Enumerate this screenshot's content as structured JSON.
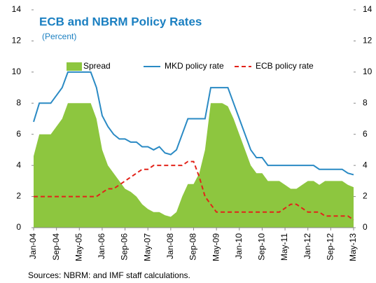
{
  "chart_data": {
    "type": "line",
    "title": "ECB and NBRM Policy Rates",
    "subtitle": "(Percent)",
    "source": "Sources: NBRM: and IMF staff calculations.",
    "categories": [
      "Jan-04",
      null,
      null,
      null,
      "Sep-04",
      null,
      null,
      null,
      "May-05",
      null,
      null,
      null,
      "Jan-06",
      null,
      null,
      null,
      "Sep-06",
      null,
      null,
      null,
      "May-07",
      null,
      null,
      null,
      "Jan-08",
      null,
      null,
      null,
      "Sep-08",
      null,
      null,
      null,
      "May-09",
      null,
      null,
      null,
      "Jan-10",
      null,
      null,
      null,
      "Sep-10",
      null,
      null,
      null,
      "May-11",
      null,
      null,
      null,
      "Jan-12",
      null,
      null,
      null,
      "Sep-12",
      null,
      null,
      null,
      "May-13"
    ],
    "series": [
      {
        "name": "Spread",
        "kind": "area",
        "color": "#8dc63f",
        "values": [
          4.6,
          6,
          6,
          6,
          6.5,
          7,
          8,
          8,
          8,
          8,
          8,
          7,
          5,
          4,
          3.5,
          3,
          2.5,
          2.3,
          2,
          1.5,
          1.2,
          1,
          1,
          0.8,
          0.7,
          1,
          2,
          2.8,
          2.8,
          3.5,
          5,
          8,
          8,
          8,
          7.8,
          7,
          6,
          5,
          4,
          3.5,
          3.5,
          3,
          3,
          3,
          2.75,
          2.5,
          2.5,
          2.75,
          3,
          3,
          2.75,
          3,
          3,
          3,
          3,
          2.75,
          2.6
        ]
      },
      {
        "name": "MKD policy rate",
        "kind": "line",
        "style": "solid",
        "color": "#2a8ac4",
        "values": [
          6.8,
          8,
          8,
          8,
          8.5,
          9,
          10,
          10,
          10,
          10,
          10,
          9,
          7.2,
          6.5,
          6,
          5.7,
          5.7,
          5.5,
          5.5,
          5.2,
          5.2,
          5,
          5.2,
          4.8,
          4.7,
          5,
          6,
          7,
          7,
          7,
          7,
          9,
          9,
          9,
          9,
          8,
          7,
          6,
          5,
          4.5,
          4.5,
          4,
          4,
          4,
          4,
          4,
          4,
          4,
          4,
          4,
          3.75,
          3.75,
          3.75,
          3.75,
          3.75,
          3.5,
          3.4
        ]
      },
      {
        "name": "ECB policy rate",
        "kind": "line",
        "style": "dashed",
        "color": "#e2231a",
        "values": [
          2,
          2,
          2,
          2,
          2,
          2,
          2,
          2,
          2,
          2,
          2,
          2,
          2.25,
          2.5,
          2.5,
          2.75,
          3,
          3.25,
          3.5,
          3.75,
          3.75,
          4,
          4,
          4,
          4,
          4,
          4,
          4.25,
          4.25,
          3.25,
          2,
          1.5,
          1,
          1,
          1,
          1,
          1,
          1,
          1,
          1,
          1,
          1,
          1,
          1,
          1.25,
          1.5,
          1.5,
          1.25,
          1,
          1,
          1,
          0.75,
          0.75,
          0.75,
          0.75,
          0.75,
          0.5
        ]
      }
    ],
    "ylim": [
      0,
      14
    ],
    "yticks": [
      0,
      2,
      4,
      6,
      8,
      10,
      12,
      14
    ],
    "y2lim": [
      0,
      14
    ],
    "y2ticks": [
      0,
      2,
      4,
      6,
      8,
      10,
      12,
      14
    ],
    "legend": "top"
  }
}
